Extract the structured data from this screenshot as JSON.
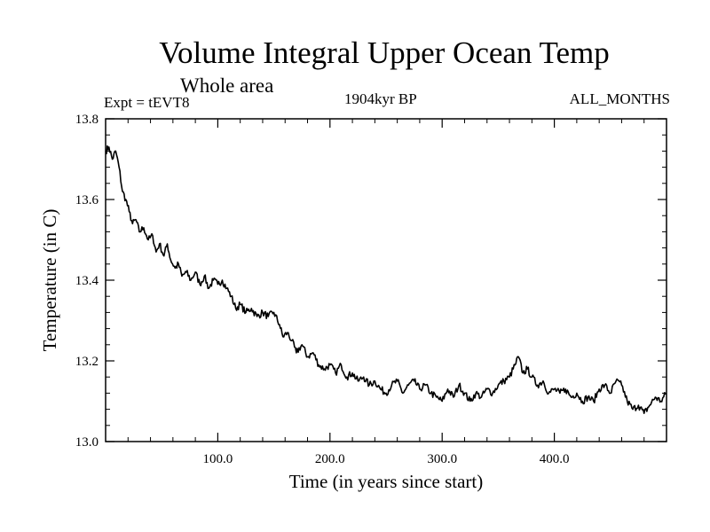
{
  "chart_data": {
    "type": "line",
    "title": "Volume Integral Upper Ocean Temp",
    "subtitle": "Whole area",
    "experiment_label": "Expt = tEVT8",
    "period_label": "1904kyr BP",
    "months_label": "ALL_MONTHS",
    "xlabel": "Time (in years since start)",
    "ylabel": "Temperature (in C)",
    "xlim": [
      0,
      500
    ],
    "ylim": [
      13.0,
      13.8
    ],
    "x_ticks": [
      100,
      200,
      300,
      400
    ],
    "x_tick_labels": [
      "100.0",
      "200.0",
      "300.0",
      "400.0"
    ],
    "y_ticks": [
      13.0,
      13.2,
      13.4,
      13.6,
      13.8
    ],
    "y_tick_labels": [
      "13.0",
      "13.2",
      "13.4",
      "13.6",
      "13.8"
    ],
    "grid": false,
    "series": [
      {
        "name": "Temperature",
        "color": "#000000",
        "points": [
          [
            0,
            13.72
          ],
          [
            3,
            13.73
          ],
          [
            6,
            13.7
          ],
          [
            9,
            13.72
          ],
          [
            12,
            13.68
          ],
          [
            15,
            13.62
          ],
          [
            18,
            13.6
          ],
          [
            21,
            13.57
          ],
          [
            24,
            13.54
          ],
          [
            27,
            13.55
          ],
          [
            30,
            13.52
          ],
          [
            34,
            13.53
          ],
          [
            38,
            13.5
          ],
          [
            42,
            13.51
          ],
          [
            45,
            13.47
          ],
          [
            48,
            13.49
          ],
          [
            52,
            13.46
          ],
          [
            55,
            13.49
          ],
          [
            58,
            13.45
          ],
          [
            62,
            13.43
          ],
          [
            65,
            13.44
          ],
          [
            68,
            13.41
          ],
          [
            72,
            13.42
          ],
          [
            76,
            13.4
          ],
          [
            80,
            13.42
          ],
          [
            84,
            13.39
          ],
          [
            88,
            13.41
          ],
          [
            92,
            13.38
          ],
          [
            96,
            13.4
          ],
          [
            100,
            13.39
          ],
          [
            104,
            13.4
          ],
          [
            108,
            13.38
          ],
          [
            112,
            13.36
          ],
          [
            116,
            13.33
          ],
          [
            120,
            13.34
          ],
          [
            125,
            13.32
          ],
          [
            130,
            13.33
          ],
          [
            135,
            13.31
          ],
          [
            140,
            13.32
          ],
          [
            145,
            13.31
          ],
          [
            150,
            13.32
          ],
          [
            155,
            13.29
          ],
          [
            158,
            13.26
          ],
          [
            162,
            13.27
          ],
          [
            166,
            13.25
          ],
          [
            170,
            13.22
          ],
          [
            175,
            13.24
          ],
          [
            180,
            13.21
          ],
          [
            185,
            13.22
          ],
          [
            190,
            13.19
          ],
          [
            195,
            13.18
          ],
          [
            200,
            13.19
          ],
          [
            205,
            13.17
          ],
          [
            210,
            13.19
          ],
          [
            215,
            13.16
          ],
          [
            220,
            13.17
          ],
          [
            225,
            13.15
          ],
          [
            230,
            13.16
          ],
          [
            235,
            13.14
          ],
          [
            240,
            13.15
          ],
          [
            245,
            13.13
          ],
          [
            250,
            13.12
          ],
          [
            255,
            13.14
          ],
          [
            260,
            13.15
          ],
          [
            265,
            13.12
          ],
          [
            270,
            13.14
          ],
          [
            275,
            13.15
          ],
          [
            280,
            13.13
          ],
          [
            285,
            13.14
          ],
          [
            290,
            13.12
          ],
          [
            295,
            13.11
          ],
          [
            300,
            13.1
          ],
          [
            305,
            13.13
          ],
          [
            310,
            13.11
          ],
          [
            315,
            13.14
          ],
          [
            320,
            13.12
          ],
          [
            325,
            13.1
          ],
          [
            330,
            13.12
          ],
          [
            335,
            13.11
          ],
          [
            340,
            13.13
          ],
          [
            345,
            13.12
          ],
          [
            350,
            13.14
          ],
          [
            355,
            13.15
          ],
          [
            360,
            13.16
          ],
          [
            365,
            13.19
          ],
          [
            368,
            13.21
          ],
          [
            372,
            13.17
          ],
          [
            376,
            13.18
          ],
          [
            380,
            13.16
          ],
          [
            385,
            13.14
          ],
          [
            390,
            13.15
          ],
          [
            395,
            13.12
          ],
          [
            400,
            13.13
          ],
          [
            405,
            13.12
          ],
          [
            410,
            13.13
          ],
          [
            415,
            13.11
          ],
          [
            420,
            13.12
          ],
          [
            425,
            13.1
          ],
          [
            430,
            13.11
          ],
          [
            435,
            13.1
          ],
          [
            440,
            13.13
          ],
          [
            445,
            13.14
          ],
          [
            450,
            13.12
          ],
          [
            455,
            13.15
          ],
          [
            460,
            13.14
          ],
          [
            465,
            13.1
          ],
          [
            470,
            13.08
          ],
          [
            475,
            13.09
          ],
          [
            480,
            13.07
          ],
          [
            485,
            13.09
          ],
          [
            490,
            13.11
          ],
          [
            495,
            13.1
          ],
          [
            500,
            13.12
          ]
        ]
      }
    ]
  }
}
